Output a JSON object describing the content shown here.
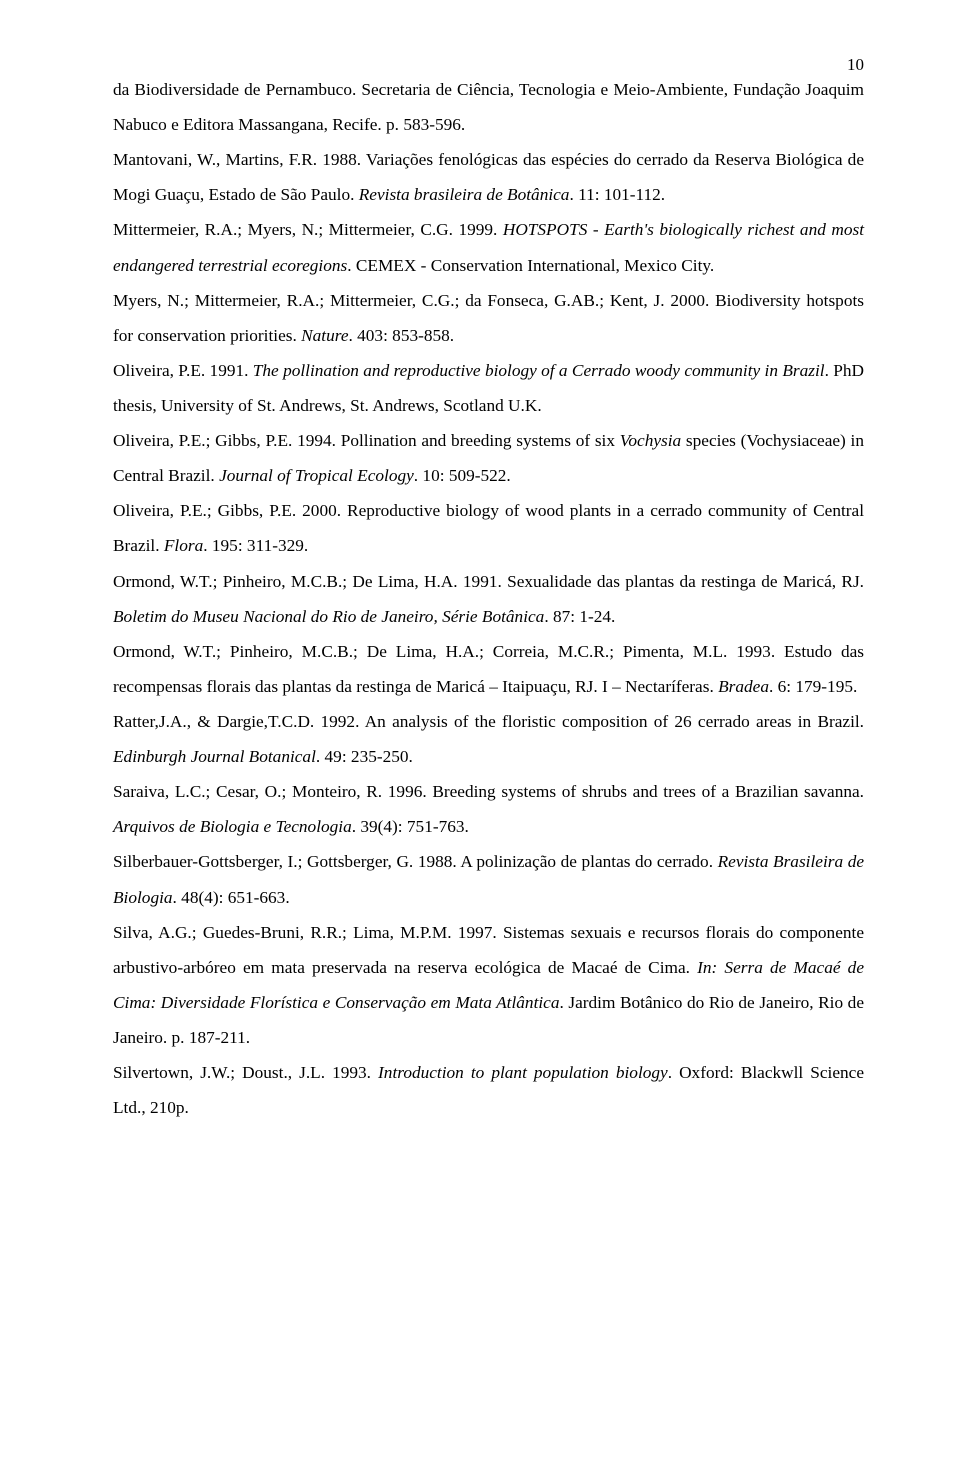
{
  "page_number": "10",
  "refs": [
    {
      "html": "da Biodiversidade de Pernambuco. Secretaria de Ciência, Tecnologia e Meio-Ambiente, Fundação Joaquim Nabuco e Editora Massangana, Recife. p. 583-596."
    },
    {
      "html": "Mantovani, W., Martins, F.R. 1988. Variações fenológicas das espécies do cerrado da Reserva Biológica de Mogi Guaçu, Estado de São Paulo. <span class=\"i\">Revista brasileira de Botânica</span>. 11: 101-112."
    },
    {
      "html": "Mittermeier, R.A.; Myers, N.; Mittermeier, C.G. 1999. <span class=\"i\">HOTSPOTS - Earth's biologically richest and most endangered terrestrial ecoregions</span>. CEMEX - Conservation International, Mexico City."
    },
    {
      "html": "Myers, N.; Mittermeier, R.A.; Mittermeier, C.G.; da Fonseca, G.AB.; Kent, J. 2000. Biodiversity hotspots for conservation priorities. <span class=\"i\">Nature</span>. 403: 853-858."
    },
    {
      "html": "Oliveira, P.E. 1991. <span class=\"i\">The pollination and reproductive biology of a Cerrado woody community in Brazil</span>. PhD thesis, University of St. Andrews, St. Andrews, Scotland U.K."
    },
    {
      "html": "Oliveira, P.E.; Gibbs, P.E. 1994. Pollination and breeding systems of six <span class=\"i\">Vochysia</span> species (Vochysiaceae) in Central Brazil. <span class=\"i\">Journal of Tropical Ecology</span>. 10: 509-522."
    },
    {
      "html": "Oliveira, P.E.; Gibbs, P.E. 2000. Reproductive biology of wood plants in a cerrado community of Central Brazil. <span class=\"i\">Flora</span>. 195: 311-329."
    },
    {
      "html": "Ormond, W.T.; Pinheiro, M.C.B.; De Lima, H.A. 1991. Sexualidade das plantas da restinga de Maricá, RJ. <span class=\"i\">Boletim do Museu Nacional do Rio de Janeiro, Série Botânica</span>. 87: 1-24."
    },
    {
      "html": "Ormond, W.T.; Pinheiro, M.C.B.; De Lima, H.A.; Correia, M.C.R.; Pimenta, M.L. 1993. Estudo das recompensas florais das plantas da restinga de Maricá – Itaipuaçu, RJ. I – Nectaríferas. <span class=\"i\">Bradea</span>. 6: 179-195."
    },
    {
      "html": "Ratter,J.A., &amp; Dargie,T.C.D. 1992. An analysis of the floristic composition of 26 cerrado areas in Brazil. <span class=\"i\">Edinburgh Journal Botanical</span>. 49: 235-250."
    },
    {
      "html": "Saraiva, L.C.; Cesar, O.; Monteiro, R. 1996.  Breeding systems of shrubs and trees of a Brazilian savanna. <span class=\"i\">Arquivos de Biologia e Tecnologia</span>. 39(4): 751-763."
    },
    {
      "html": "Silberbauer-Gottsberger, I.; Gottsberger, G. 1988. A polinização de plantas do cerrado. <span class=\"i\">Revista Brasileira de Biologia</span>. 48(4): 651-663."
    },
    {
      "html": "Silva, A.G.; Guedes-Bruni, R.R.; Lima, M.P.M. 1997. Sistemas sexuais e recursos florais do componente arbustivo-arbóreo em mata preservada na reserva ecológica de Macaé de Cima. <span class=\"i\">In: Serra de Macaé de Cima: Diversidade Florística e Conservação em Mata Atlântica</span>. Jardim Botânico do Rio de Janeiro, Rio de Janeiro. p. 187-211."
    },
    {
      "html": "Silvertown, J.W.; Doust., J.L. 1993. <span class=\"i\">Introduction to plant population biology</span>. Oxford: Blackwll Science Ltd., 210p."
    }
  ]
}
